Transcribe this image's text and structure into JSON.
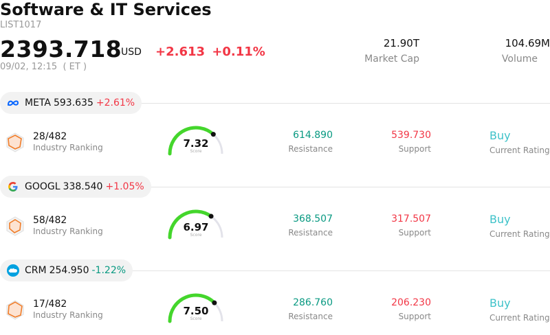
{
  "header": {
    "title": "Software & IT Services",
    "code": "LIST1017",
    "price": "2393.718",
    "currency": "USD",
    "change": "+2.613",
    "change_pct": "+0.11%",
    "timestamp": "09/02, 12:15  ( ET )"
  },
  "kpis": {
    "market_cap": {
      "value": "21.90T",
      "label": "Market Cap"
    },
    "volume": {
      "value": "104.69M",
      "label": "Volume"
    }
  },
  "stocks": [
    {
      "logo_icon": "meta-logo-icon",
      "symbol": "META",
      "price": "593.635",
      "change_pct": "+2.61%",
      "direction": "up",
      "rank": "28/482",
      "rank_label": "Industry Ranking",
      "score": "7.32",
      "score_value": 7.32,
      "score_label": "Score",
      "resistance": "614.890",
      "resistance_label": "Resistance",
      "support": "539.730",
      "support_label": "Support",
      "rating": "Buy",
      "rating_label": "Current Rating"
    },
    {
      "logo_icon": "google-logo-icon",
      "symbol": "GOOGL",
      "price": "338.540",
      "change_pct": "+1.05%",
      "direction": "up",
      "rank": "58/482",
      "rank_label": "Industry Ranking",
      "score": "6.97",
      "score_value": 6.97,
      "score_label": "Score",
      "resistance": "368.507",
      "resistance_label": "Resistance",
      "support": "317.507",
      "support_label": "Support",
      "rating": "Buy",
      "rating_label": "Current Rating"
    },
    {
      "logo_icon": "salesforce-logo-icon",
      "symbol": "CRM",
      "price": "254.950",
      "change_pct": "-1.22%",
      "direction": "down",
      "rank": "17/482",
      "rank_label": "Industry Ranking",
      "score": "7.50",
      "score_value": 7.5,
      "score_label": "Score",
      "resistance": "286.760",
      "resistance_label": "Resistance",
      "support": "206.230",
      "support_label": "Support",
      "rating": "Buy",
      "rating_label": "Current Rating"
    }
  ],
  "colors": {
    "up": "#f23645",
    "down": "#089981",
    "gauge": "#44d62c",
    "rating": "#3ec2c9"
  }
}
